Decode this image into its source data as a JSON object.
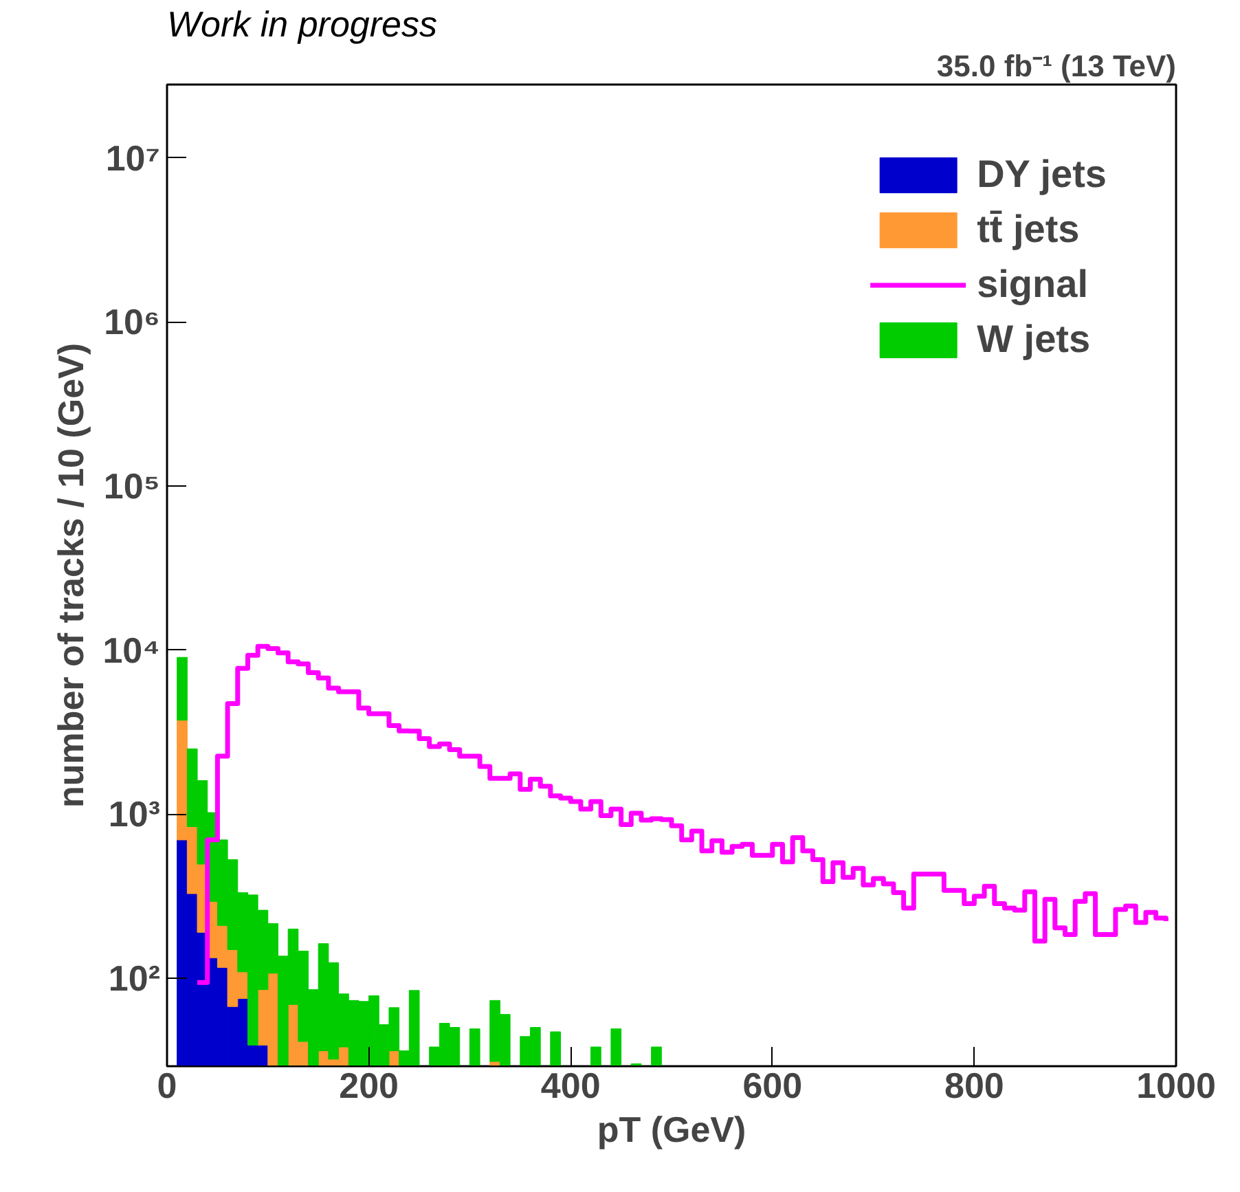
{
  "chart_data": {
    "type": "bar",
    "stacked": true,
    "log": "y",
    "grid": false,
    "legend": "top right",
    "title": "Work in progress",
    "subtitle": "35.0 fb⁻¹ (13 TeV)",
    "xlabel": "pT (GeV)",
    "ylabel": "number of tracks / 10 (GeV)",
    "xlim": [
      0,
      1000
    ],
    "xticks": [
      0,
      200,
      400,
      600,
      800,
      1000
    ],
    "ylim": [
      29,
      28000000
    ],
    "yticks": [
      {
        "value": 100,
        "label": "10²"
      },
      {
        "value": 1000,
        "label": "10³"
      },
      {
        "value": 10000,
        "label": "10⁴"
      },
      {
        "value": 100000,
        "label": "10⁵"
      },
      {
        "value": 1000000,
        "label": "10⁶"
      },
      {
        "value": 10000000,
        "label": "10⁷"
      }
    ],
    "x": [
      15,
      25,
      35,
      45,
      55,
      65,
      75,
      85,
      95,
      105,
      115,
      125,
      135,
      145,
      155,
      165,
      175,
      185,
      195,
      205,
      215,
      225,
      235,
      245,
      255,
      265,
      275,
      285,
      295,
      305,
      315,
      325,
      335,
      345,
      355,
      365,
      375,
      385,
      395,
      405,
      415,
      425,
      435,
      445,
      455,
      465,
      475,
      485
    ],
    "series": [
      {
        "name": "DY jets",
        "color": "#0000cc",
        "values": [
          695,
          327,
          190,
          133,
          116,
          67,
          75,
          39,
          39,
          null,
          null,
          null,
          null,
          null,
          null,
          null,
          null,
          null,
          null,
          null,
          null,
          null,
          null,
          null,
          null,
          null,
          null,
          null,
          null,
          null,
          null,
          null,
          null,
          null,
          null,
          null,
          null,
          null,
          null,
          null,
          null,
          null,
          null,
          null,
          null,
          null,
          null,
          null
        ]
      },
      {
        "name": "tt̄ jets",
        "color": "#ff9933",
        "values": [
          3035,
          510,
          305,
          160,
          93,
          82,
          34,
          null,
          46,
          107,
          null,
          69,
          41,
          null,
          36,
          32,
          38,
          null,
          null,
          null,
          null,
          36,
          null,
          null,
          null,
          null,
          null,
          null,
          null,
          null,
          null,
          31,
          null,
          null,
          null,
          null,
          null,
          null,
          null,
          null,
          null,
          null,
          null,
          null,
          null,
          null,
          null,
          null
        ]
      },
      {
        "name": "signal",
        "color": "#ff00ff",
        "type": "step",
        "x": [
          30,
          40,
          50,
          60,
          70,
          80,
          90,
          100,
          110,
          120,
          130,
          140,
          150,
          160,
          170,
          180,
          190,
          200,
          210,
          220,
          230,
          240,
          250,
          260,
          270,
          280,
          290,
          300,
          310,
          320,
          330,
          340,
          350,
          360,
          370,
          380,
          390,
          400,
          410,
          420,
          430,
          440,
          450,
          460,
          470,
          480,
          490,
          500,
          510,
          520,
          530,
          540,
          550,
          560,
          570,
          580,
          590,
          600,
          610,
          620,
          630,
          640,
          650,
          660,
          670,
          680,
          690,
          700,
          710,
          720,
          730,
          740,
          750,
          760,
          770,
          780,
          790,
          800,
          810,
          820,
          830,
          840,
          850,
          860,
          870,
          880,
          890,
          900,
          910,
          920,
          930,
          940,
          950,
          960,
          970,
          980,
          990
        ],
        "values": [
          94,
          695,
          2250,
          4710,
          7730,
          9290,
          10520,
          10200,
          9600,
          8470,
          8220,
          7270,
          6750,
          5850,
          5570,
          5570,
          4430,
          4090,
          4090,
          3460,
          3210,
          3200,
          2880,
          2580,
          2670,
          2470,
          2250,
          2250,
          1950,
          1650,
          1650,
          1755,
          1415,
          1630,
          1476,
          1290,
          1250,
          1190,
          1070,
          1190,
          977,
          1070,
          863,
          1010,
          918,
          935,
          925,
          847,
          695,
          787,
          596,
          687,
          585,
          634,
          653,
          560,
          560,
          653,
          511,
          717,
          596,
          527,
          387,
          504,
          411,
          466,
          370,
          404,
          375,
          332,
          267,
          430,
          430,
          430,
          342,
          342,
          284,
          315,
          363,
          284,
          267,
          259,
          336,
          168,
          302,
          202,
          184,
          293,
          327,
          184,
          184,
          262,
          275,
          218,
          251,
          232,
          222
        ]
      },
      {
        "name": "W jets",
        "color": "#00cc00",
        "values": [
          5286,
          1660,
          1105,
          727,
          486,
          378,
          223,
          282,
          174,
          108,
          136,
          130,
          105,
          85,
          126,
          92,
          42,
          73,
          72,
          78,
          52,
          30,
          36,
          84,
          null,
          38,
          53,
          50,
          null,
          49,
          null,
          42,
          60,
          null,
          44,
          50,
          null,
          47,
          null,
          null,
          null,
          38,
          null,
          49,
          null,
          30,
          null,
          38
        ]
      }
    ]
  }
}
